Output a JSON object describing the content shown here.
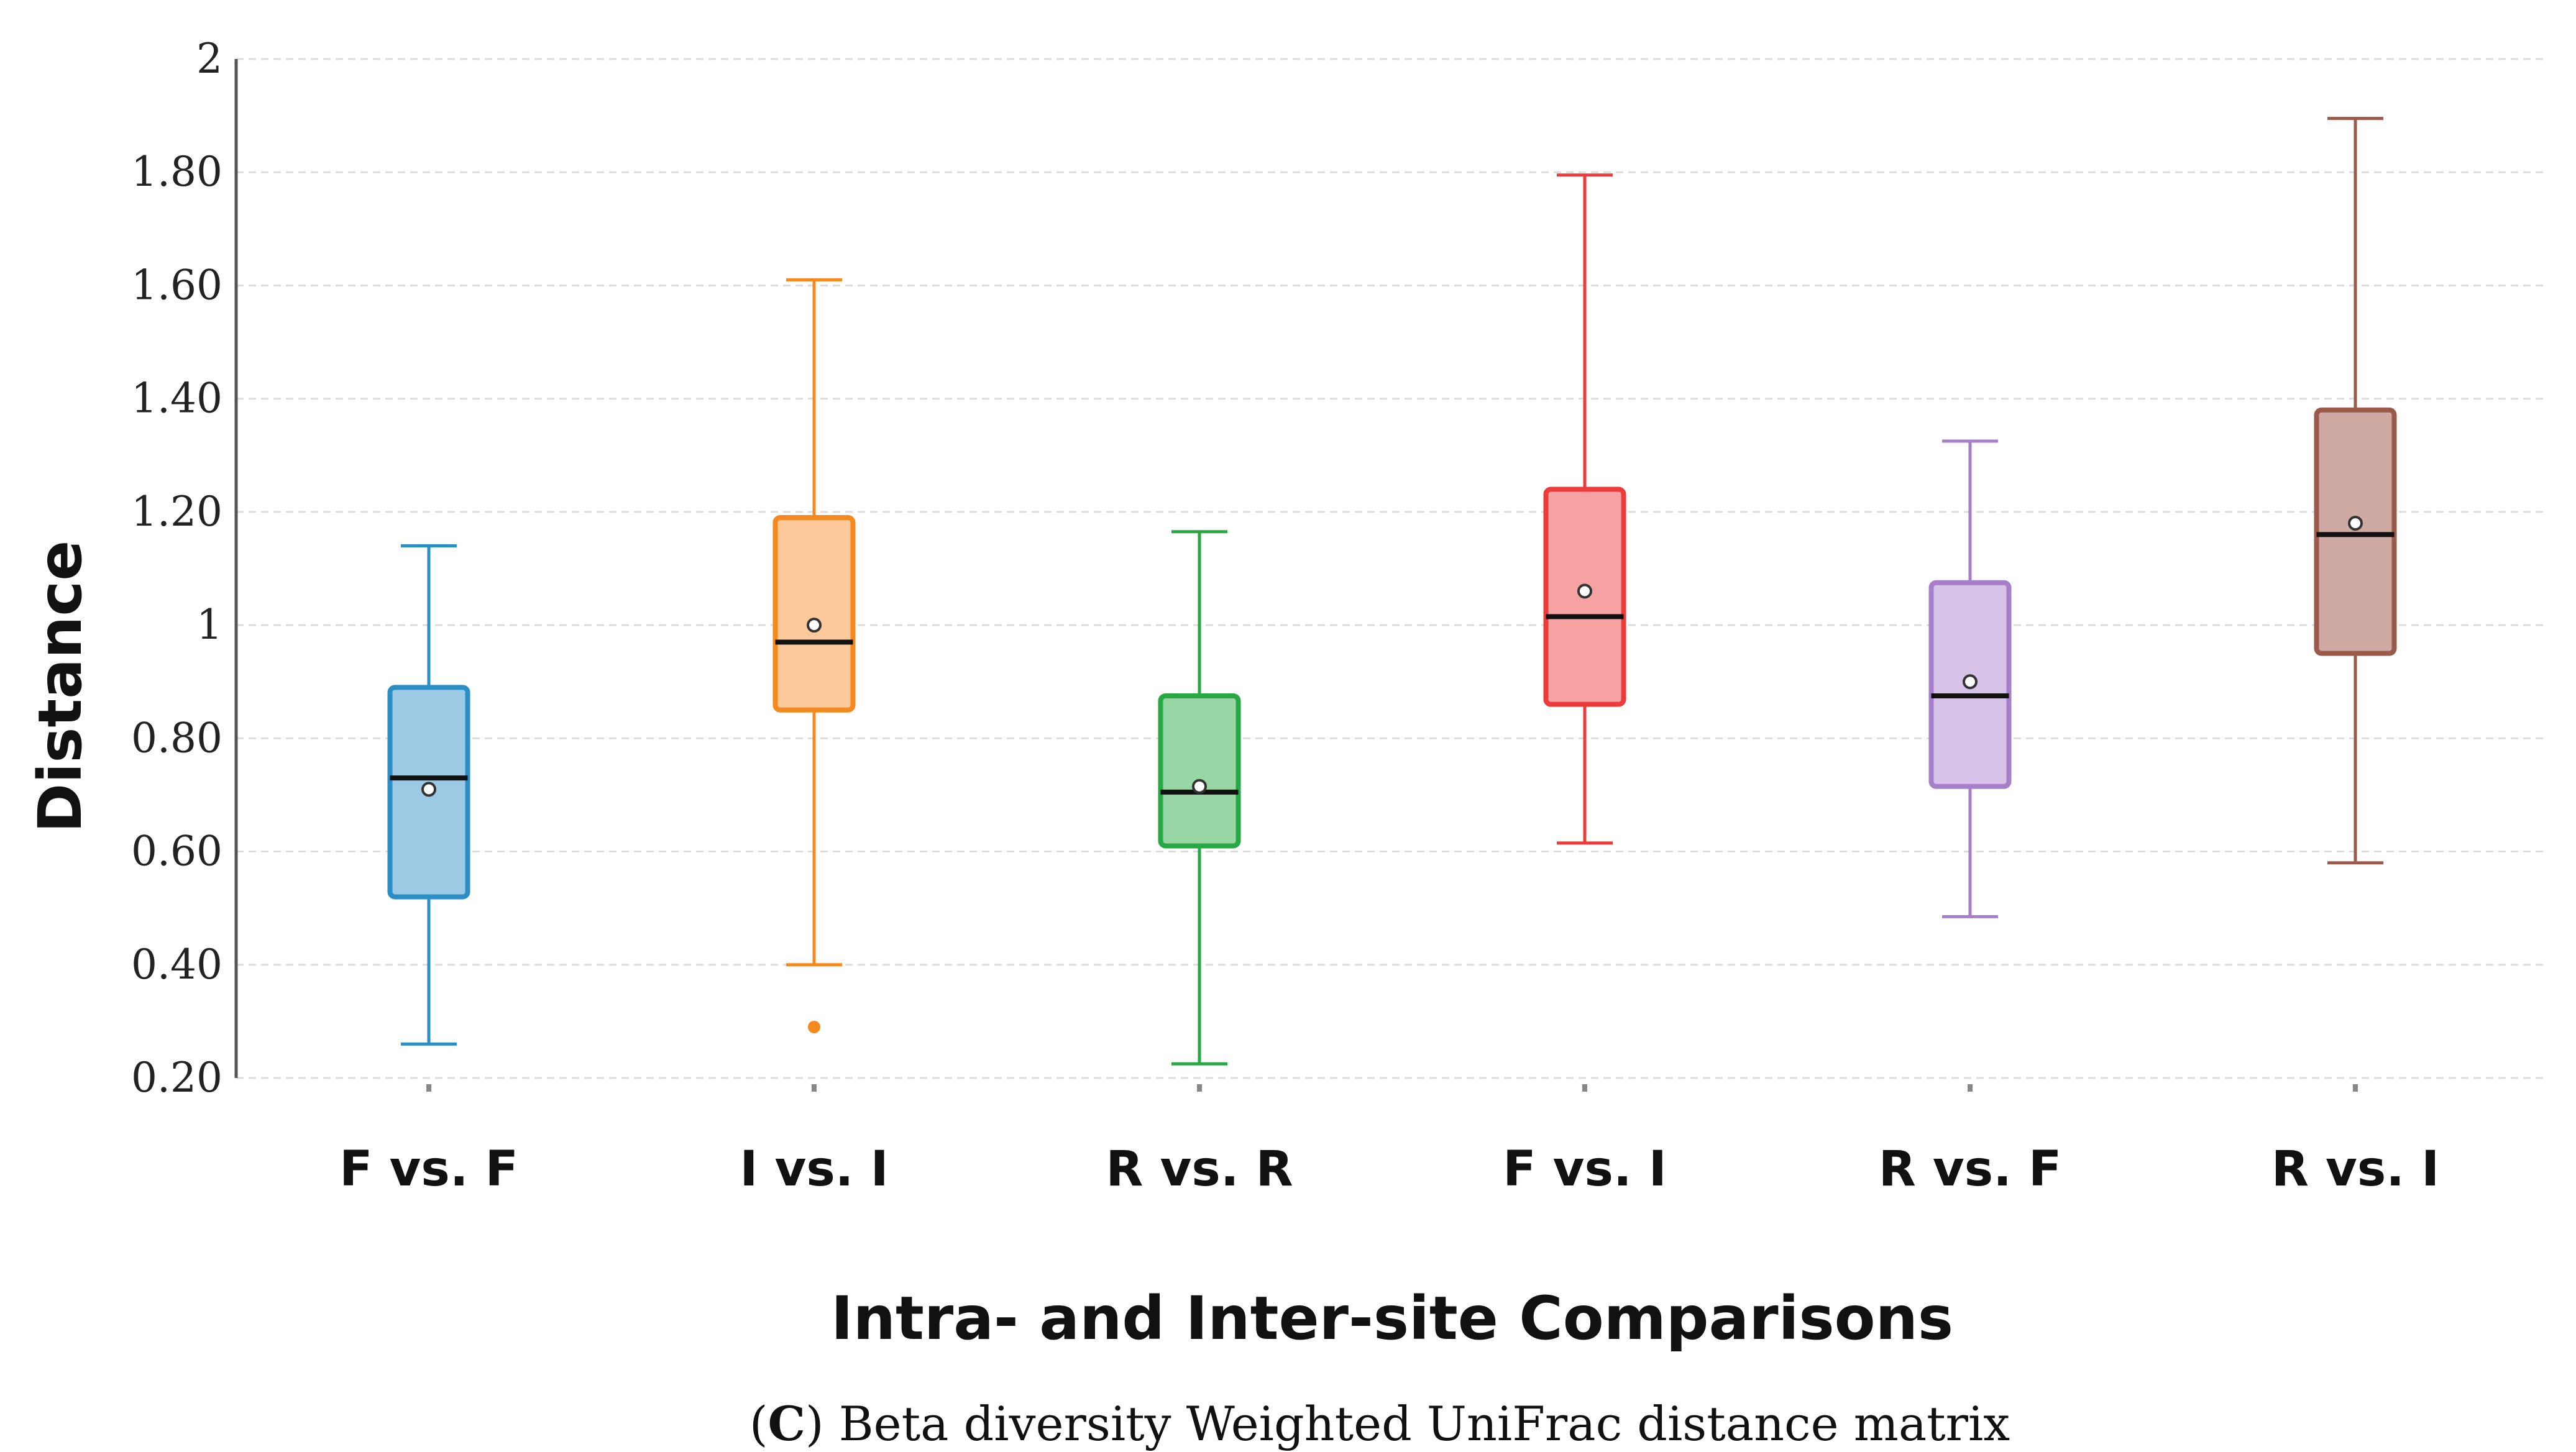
{
  "chart_data": {
    "type": "box",
    "ylabel": "Distance",
    "xlabel": "Intra- and Inter-site Comparisons",
    "ylim": [
      0.2,
      2.0
    ],
    "yticks": [
      {
        "value": 0.2,
        "label": "0.20"
      },
      {
        "value": 0.4,
        "label": "0.40"
      },
      {
        "value": 0.6,
        "label": "0.60"
      },
      {
        "value": 0.8,
        "label": "0.80"
      },
      {
        "value": 1.0,
        "label": "1"
      },
      {
        "value": 1.2,
        "label": "1.20"
      },
      {
        "value": 1.4,
        "label": "1.40"
      },
      {
        "value": 1.6,
        "label": "1.60"
      },
      {
        "value": 1.8,
        "label": "1.80"
      },
      {
        "value": 2.0,
        "label": "2"
      }
    ],
    "grid": true,
    "boxes": [
      {
        "category": "F vs. F",
        "min": 0.26,
        "q1": 0.52,
        "median": 0.73,
        "q3": 0.89,
        "max": 1.14,
        "mean": 0.71,
        "outliers": [],
        "color": "#2b8fc6",
        "fill": "#9cc9e3"
      },
      {
        "category": "I vs. I",
        "min": 0.4,
        "q1": 0.85,
        "median": 0.97,
        "q3": 1.19,
        "max": 1.61,
        "mean": 1.0,
        "outliers": [
          0.29
        ],
        "color": "#f5891f",
        "fill": "#fbc99a"
      },
      {
        "category": "R vs. R",
        "min": 0.225,
        "q1": 0.61,
        "median": 0.705,
        "q3": 0.875,
        "max": 1.165,
        "mean": 0.715,
        "outliers": [],
        "color": "#28a845",
        "fill": "#98d7a5"
      },
      {
        "category": "F vs. I",
        "min": 0.615,
        "q1": 0.86,
        "median": 1.015,
        "q3": 1.24,
        "max": 1.795,
        "mean": 1.06,
        "outliers": [],
        "color": "#ec3b3b",
        "fill": "#f7a2a2"
      },
      {
        "category": "R vs. F",
        "min": 0.485,
        "q1": 0.715,
        "median": 0.875,
        "q3": 1.075,
        "max": 1.325,
        "mean": 0.9,
        "outliers": [],
        "color": "#a77ec9",
        "fill": "#d7c2e8"
      },
      {
        "category": "R vs. I",
        "min": 0.58,
        "q1": 0.95,
        "median": 1.16,
        "q3": 1.38,
        "max": 1.895,
        "mean": 1.18,
        "outliers": [],
        "color": "#9a5a4c",
        "fill": "#cfaaa2"
      }
    ]
  },
  "caption": {
    "open_paren": "(",
    "letter": "C",
    "text": ") Beta diversity Weighted UniFrac distance matrix"
  }
}
